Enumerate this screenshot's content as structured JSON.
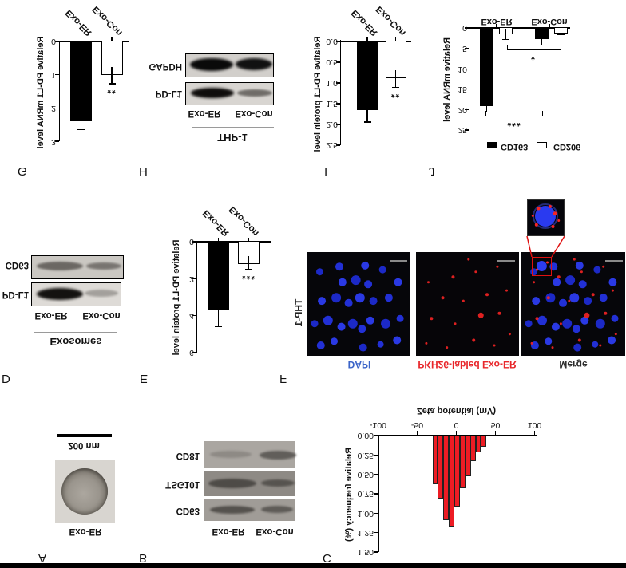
{
  "panels": {
    "A": {
      "letter": "A",
      "em_label": "Exo-ER",
      "scale_bar": "200 nm"
    },
    "B": {
      "letter": "B",
      "lane_labels": [
        "Exo-ER",
        "Exo-Con"
      ],
      "blot_labels": [
        "CD63",
        "TSG101",
        "CD81"
      ]
    },
    "C": {
      "letter": "C"
    },
    "D": {
      "letter": "D",
      "header": "Exosomes",
      "lane_labels": [
        "Exo-ER",
        "Exo-Con"
      ],
      "blot_labels": [
        "PD-L1",
        "CD63"
      ]
    },
    "E": {
      "letter": "E"
    },
    "F": {
      "letter": "F",
      "row_label": "THP-1",
      "col_labels": [
        "DAPI",
        "PKH26-labled Exo-ER",
        "Merge"
      ]
    },
    "G": {
      "letter": "G"
    },
    "H": {
      "letter": "H",
      "header": "THP-1",
      "lane_labels": [
        "Exo-ER",
        "Exo-Con"
      ],
      "blot_labels": [
        "PD-L1",
        "GAPDH"
      ]
    },
    "I": {
      "letter": "I"
    },
    "J": {
      "letter": "J"
    }
  },
  "colors": {
    "histogram_red": "#ed1c24",
    "dapi_label_blue": "#3b64c8",
    "pkh26_label_red": "#e8262a",
    "merge_label_gray": "#2a2a2a",
    "bar_black": "#000000",
    "bar_white": "#ffffff",
    "callout_red": "#e01010"
  },
  "chart_data": [
    {
      "id": "G",
      "type": "bar",
      "ylabel": "Relative PD-L1 mRNA level",
      "categories": [
        "Exo-ER",
        "Exo-Con"
      ],
      "values": [
        2.4,
        1.0
      ],
      "errors": [
        0.25,
        0.27
      ],
      "bar_fills": [
        "#000000",
        "#ffffff"
      ],
      "yticks": [
        "0",
        "1",
        "2",
        "3"
      ],
      "ylim": [
        0,
        3
      ],
      "significance": {
        "label": "**",
        "category": "Exo-Con"
      }
    },
    {
      "id": "E",
      "type": "bar",
      "ylabel": "Relative PD-L1 protein level",
      "categories": [
        "Exo-ER",
        "Exo-Con"
      ],
      "values": [
        3.7,
        1.2
      ],
      "errors": [
        0.9,
        0.3
      ],
      "bar_fills": [
        "#000000",
        "#ffffff"
      ],
      "yticks": [
        "0",
        "2",
        "4",
        "6"
      ],
      "ylim": [
        0,
        6
      ],
      "significance": {
        "label": "***",
        "category": "Exo-Con"
      }
    },
    {
      "id": "I",
      "type": "bar",
      "ylabel": "Relative PD-L1 protein level",
      "categories": [
        "Exo-ER",
        "Exo-Con"
      ],
      "values": [
        1.65,
        0.88
      ],
      "errors": [
        0.29,
        0.23
      ],
      "bar_fills": [
        "#000000",
        "#ffffff"
      ],
      "yticks": [
        "0.0",
        "0.5",
        "1.0",
        "1.5",
        "2.0",
        "2.5"
      ],
      "ylim": [
        0,
        2.5
      ],
      "significance": {
        "label": "**",
        "category": "Exo-Con"
      }
    },
    {
      "id": "J",
      "type": "grouped-bar",
      "ylabel": "Relative mRNA level",
      "categories": [
        "Exo-ER",
        "Exo-Con"
      ],
      "series": [
        {
          "name": "CD163",
          "fill": "#000000",
          "values": [
            19.1,
            2.8
          ],
          "errors": [
            1.5,
            1.4
          ]
        },
        {
          "name": "CD206",
          "fill": "#ffffff",
          "values": [
            1.5,
            1.3
          ],
          "errors": [
            1.3,
            0.3
          ]
        }
      ],
      "yticks": [
        "0",
        "5",
        "10",
        "15",
        "20",
        "25"
      ],
      "ylim": [
        0,
        25
      ],
      "legend": [
        "CD163",
        "CD206"
      ],
      "brackets": [
        {
          "label": "***",
          "between": "CD163 Exo-ER vs Exo-Con"
        },
        {
          "label": "*",
          "between": "CD206 Exo-ER vs Exo-Con"
        }
      ]
    },
    {
      "id": "C",
      "type": "histogram",
      "xlabel": "Zeta potential (mV)",
      "ylabel": "Relative frequency (%)",
      "xticks": [
        "-100",
        "-50",
        "0",
        "50",
        "100"
      ],
      "yticks": [
        "0.00",
        "0.25",
        "0.50",
        "0.75",
        "1.00",
        "1.25",
        "1.50"
      ],
      "xlim": [
        -105,
        110
      ],
      "ylim": [
        0,
        1.5
      ],
      "bar_fill": "#ed1c24",
      "bin_width_mV": 7,
      "bin_centers_mV": [
        -27,
        -20,
        -13,
        -6,
        1,
        8,
        15,
        21,
        28,
        35
      ],
      "frequencies": [
        0.63,
        0.81,
        1.09,
        1.17,
        0.91,
        0.68,
        0.52,
        0.33,
        0.22,
        0.14
      ]
    }
  ]
}
